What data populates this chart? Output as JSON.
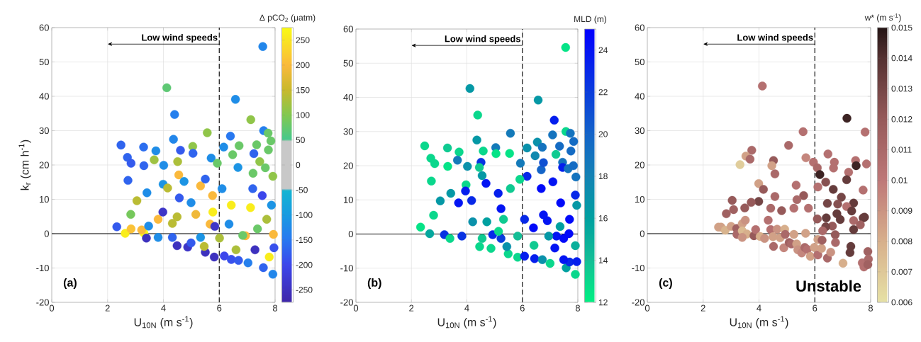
{
  "chart_data": [
    {
      "type": "scatter",
      "xlabel": "U$_{10N}$ (m s$^{-1}$)",
      "ylabel": "k$_{r}$ (cm h$^{-1}$)",
      "clabel": "Δ pCO$_{2}$ (μatm)",
      "xlim": [
        0,
        8
      ],
      "ylim": [
        -20,
        60
      ],
      "xticks": [
        0,
        2,
        4,
        6,
        8
      ],
      "yticks": [
        -20,
        -10,
        0,
        10,
        20,
        30,
        40,
        50,
        60
      ],
      "grid": true,
      "marker": "circle",
      "clim": [
        -275,
        275
      ],
      "cticks": [
        -250,
        -200,
        -150,
        -100,
        -50,
        0,
        50,
        100,
        150,
        200,
        250
      ],
      "ref_lines": [
        {
          "axis": "y",
          "value": 0
        },
        {
          "axis": "x",
          "value": 6,
          "line_style": "dashed"
        }
      ],
      "annotations": [
        "Low wind speeds",
        "(a)"
      ],
      "x": [
        7.56,
        4.12,
        6.58,
        4.4,
        7.13,
        5.57,
        4.36,
        2.48,
        6.4,
        7.59,
        7.75,
        7.85,
        3.29,
        3.73,
        4.61,
        5.05,
        5.06,
        2.71,
        2.84,
        3.67,
        4.01,
        4.51,
        3.3,
        5.71,
        6.16,
        6.71,
        7.24,
        7.34,
        7.76,
        6.48,
        7.45,
        7.65,
        7.92,
        2.73,
        4.55,
        5.93,
        6.67,
        7.21,
        3.41,
        5.33,
        3.99,
        3.05,
        2.83,
        2.33,
        2.63,
        2.84,
        3.3,
        3.39,
        3.22,
        3.81,
        4.15,
        4.32,
        4.49,
        4.87,
        5.5,
        5.82,
        6.18,
        6.43,
        6.69,
        7.03,
        7.58,
        7.92,
        7.79,
        7.96,
        7.94,
        6.94,
        6.43,
        5.77,
        7.12,
        6.84,
        6.6,
        5.46,
        6.01,
        4.99,
        6.1,
        7.2,
        7.54,
        7.87,
        7.7,
        7.37,
        4.99,
        4.57,
        3.98,
        4.49,
        5.16,
        5.67,
        3.47,
        3.81,
        4.32,
        5.33,
        5.84,
        6.35,
        5.76,
        5.5,
        4.74,
        7.28
      ],
      "values": [
        54.5,
        42.5,
        39.1,
        34.7,
        33.2,
        29.4,
        27.5,
        25.8,
        28.4,
        30.0,
        29.3,
        27.0,
        25.2,
        24.1,
        24.3,
        25.4,
        23.4,
        22.2,
        20.5,
        21.5,
        19.9,
        21.0,
        19.8,
        22.0,
        25.2,
        25.6,
        23.3,
        25.9,
        24.4,
        23.0,
        21.0,
        19.2,
        16.7,
        15.5,
        17.1,
        20.5,
        19.3,
        17.6,
        11.9,
        13.9,
        14.4,
        9.6,
        5.6,
        2.0,
        0.1,
        1.4,
        0.2,
        -1.3,
        1.1,
        4.2,
        13.3,
        3.0,
        -3.5,
        -3.9,
        -5.4,
        -6.8,
        -6.5,
        -7.5,
        -7.8,
        -8.5,
        -9.9,
        -11.8,
        -6.8,
        -4.1,
        -0.2,
        -0.6,
        8.3,
        6.3,
        7.6,
        -0.5,
        -4.7,
        -3.7,
        -1.3,
        -2.7,
        13.1,
        13.1,
        11.1,
        8.3,
        4.2,
        1.4,
        9.0,
        10.4,
        6.3,
        4.9,
        5.6,
        2.8,
        2.2,
        -1.1,
        -1.1,
        -1.1,
        2.1,
        2.8,
        11.1,
        15.9,
        15.2,
        -4.7
      ],
      "cvalues": [
        -130,
        70,
        -120,
        -140,
        110,
        110,
        -130,
        -170,
        -150,
        -140,
        80,
        80,
        -160,
        -120,
        -180,
        110,
        -170,
        -170,
        -180,
        120,
        -120,
        130,
        -170,
        -120,
        -120,
        80,
        -170,
        80,
        80,
        80,
        110,
        80,
        110,
        -170,
        200,
        80,
        -110,
        80,
        -120,
        200,
        -110,
        140,
        90,
        -180,
        260,
        210,
        270,
        -250,
        200,
        200,
        140,
        140,
        -250,
        -240,
        -250,
        -250,
        -200,
        -190,
        -180,
        -140,
        -170,
        -130,
        260,
        -190,
        200,
        200,
        260,
        260,
        260,
        80,
        130,
        140,
        130,
        -180,
        -120,
        -170,
        -200,
        -110,
        130,
        80,
        -120,
        -180,
        -240,
        140,
        190,
        200,
        -120,
        -120,
        -170,
        -110,
        -240,
        -120,
        200,
        -170,
        -110,
        -250
      ]
    },
    {
      "type": "scatter",
      "xlabel": "U$_{10N}$ (m s$^{-1}$)",
      "clabel": "MLD (m)",
      "xlim": [
        0,
        8
      ],
      "ylim": [
        -20,
        60
      ],
      "xticks": [
        0,
        2,
        4,
        6,
        8
      ],
      "yticks": [
        -20,
        -10,
        0,
        10,
        20,
        30,
        40,
        50,
        60
      ],
      "grid": true,
      "marker": "circle",
      "clim": [
        12,
        25
      ],
      "cticks": [
        12,
        14,
        16,
        18,
        20,
        22,
        24
      ],
      "ref_lines": [
        {
          "axis": "y",
          "value": 0
        },
        {
          "axis": "x",
          "value": 6,
          "line_style": "dashed"
        }
      ],
      "annotations": [
        "Low wind speeds",
        "(b)"
      ],
      "x": [
        7.56,
        4.11,
        6.57,
        4.39,
        7.15,
        5.57,
        4.36,
        2.48,
        7.57,
        7.73,
        7.09,
        7.85,
        3.3,
        3.72,
        4.59,
        5.04,
        5.05,
        5.54,
        2.7,
        2.84,
        3.66,
        4.51,
        3.31,
        4.02,
        4.45,
        6.17,
        6.54,
        6.72,
        7.34,
        7.21,
        6.46,
        7.75,
        7.45,
        7.45,
        7.65,
        7.84,
        7.93,
        6.17,
        6.68,
        6.76,
        5.93,
        2.72,
        4.55,
        4.69,
        5.13,
        3.42,
        3.97,
        3.04,
        2.8,
        2.33,
        2.66,
        3.19,
        3.39,
        3.82,
        4.17,
        3.95,
        3.7,
        4.46,
        4.87,
        5.49,
        5.83,
        6.08,
        6.44,
        6.72,
        7.0,
        7.58,
        7.91,
        7.7,
        7.96,
        7.49,
        7.17,
        7.23,
        7.49,
        7.68,
        7.91,
        6.95,
        6.4,
        6.08,
        6.9,
        7.7,
        7.38,
        6.76,
        6.68,
        7.1,
        7.91,
        7.96,
        4.93,
        5.23,
        5.44,
        5.83,
        5.23,
        5.91,
        5.57,
        4.72,
        4.21,
        5.32,
        4.55,
        6.42,
        7.36,
        5.14
      ],
      "values": [
        54.6,
        42.6,
        39.2,
        34.8,
        33.3,
        29.5,
        27.5,
        25.8,
        30.0,
        29.5,
        29.0,
        27.1,
        25.2,
        24.0,
        24.3,
        25.3,
        23.5,
        23.6,
        22.2,
        20.6,
        21.6,
        21.0,
        19.8,
        19.8,
        19.5,
        25.2,
        26.9,
        25.4,
        25.7,
        23.3,
        22.9,
        24.3,
        21.0,
        19.5,
        19.1,
        20.0,
        16.7,
        16.9,
        18.8,
        20.9,
        20.7,
        15.5,
        17.1,
        14.8,
        11.9,
        11.9,
        14.4,
        9.7,
        5.5,
        2.0,
        0.1,
        -0.2,
        -1.3,
        -0.6,
        9.8,
        12.6,
        9.1,
        -3.7,
        -4.2,
        -5.8,
        -6.8,
        -6.5,
        -7.2,
        -7.5,
        -8.6,
        -9.9,
        -11.8,
        -8.2,
        -8.1,
        -7.5,
        -4.1,
        -0.6,
        -1.3,
        0.1,
        -3.4,
        -0.6,
        1.8,
        4.3,
        3.9,
        4.3,
        9.1,
        5.6,
        13.3,
        15.3,
        11.4,
        8.4,
        -0.2,
        -1.3,
        -3.7,
        -0.6,
        7.4,
        16.0,
        13.3,
        3.6,
        3.6,
        4.3,
        -1.3,
        -3.3,
        2.2,
        0.8
      ],
      "cvalues": [
        12.5,
        16.5,
        16.5,
        13,
        23.5,
        18.5,
        16.5,
        13,
        13,
        19,
        19,
        19.5,
        13.5,
        13,
        13,
        18.5,
        12.5,
        12.5,
        13,
        13,
        18.5,
        22.5,
        12.5,
        17,
        13.5,
        17,
        17,
        19,
        19.5,
        13.5,
        17.5,
        19.5,
        19,
        23.5,
        19,
        19.5,
        19,
        23,
        20,
        21,
        18.5,
        13,
        16.5,
        24,
        23.5,
        16.5,
        13,
        16.5,
        13,
        12.5,
        15.5,
        22.5,
        13,
        22.5,
        23,
        23.5,
        24,
        13,
        13,
        13,
        13,
        23.5,
        23.5,
        17,
        13,
        16,
        13,
        23,
        23.5,
        24,
        24,
        24,
        24.5,
        24.5,
        15,
        16.5,
        24.5,
        23,
        24,
        24.5,
        24.5,
        24,
        24.5,
        24,
        23,
        16.5,
        23,
        22,
        17,
        14,
        24,
        13,
        13.5,
        16,
        17,
        13.5,
        13.5,
        13.5,
        16,
        13
      ]
    },
    {
      "type": "scatter",
      "xlabel": "U$_{10N}$ (m s$^{-1}$)",
      "clabel": "w* (m s$^{-1}$)",
      "xlim": [
        0,
        8
      ],
      "ylim": [
        -20,
        60
      ],
      "xticks": [
        0,
        2,
        4,
        6,
        8
      ],
      "yticks": [
        -20,
        -10,
        0,
        10,
        20,
        30,
        40,
        50,
        60
      ],
      "grid": true,
      "marker": "circle",
      "clim": [
        0.006,
        0.015
      ],
      "cticks": [
        0.006,
        0.007,
        0.008,
        0.009,
        0.01,
        0.011,
        0.012,
        0.013,
        0.014,
        0.015
      ],
      "ref_lines": [
        {
          "axis": "y",
          "value": 0
        },
        {
          "axis": "x",
          "value": 6,
          "line_style": "dashed"
        }
      ],
      "annotations": [
        "Low wind speeds",
        "(c)",
        "Unstable"
      ],
      "x": [
        4.12,
        7.15,
        5.58,
        7.8,
        5.06,
        3.74,
        3.53,
        3.68,
        3.32,
        4.52,
        4.46,
        5.68,
        6.47,
        6.7,
        7.46,
        7.48,
        7.85,
        5.95,
        6.09,
        6.18,
        6.67,
        7.21,
        4.57,
        7.14,
        3.99,
        4.16,
        6.39,
        6.66,
        7.73,
        5.33,
        5.6,
        6.11,
        3.04,
        3.99,
        3.72,
        4.57,
        5.36,
        6.95,
        6.45,
        6.82,
        7.39,
        7.14,
        3.09,
        3.49,
        2.83,
        4.42,
        4.81,
        5.25,
        5.77,
        6.79,
        6.91,
        7.32,
        7.73,
        7.39,
        7.78,
        7.63,
        6.09,
        6.41,
        6.63,
        6.39,
        6.28,
        7.39,
        6.73,
        2.55,
        2.64,
        2.79,
        3.0,
        3.2,
        3.21,
        3.4,
        3.51,
        3.4,
        3.57,
        3.4,
        3.82,
        3.88,
        4.04,
        4.2,
        4.33,
        4.42,
        4.5,
        4.52,
        4.65,
        4.76,
        4.89,
        4.92,
        4.94,
        5.08,
        5.16,
        5.25,
        5.35,
        5.39,
        5.53,
        5.64,
        5.67,
        5.73,
        5.84,
        5.98,
        6.11,
        6.11,
        6.24,
        6.26,
        6.45,
        6.57,
        6.74,
        7.01,
        7.29,
        7.26,
        7.9,
        7.7,
        7.76,
        7.92,
        7.9
      ],
      "values": [
        43.0,
        33.6,
        29.7,
        29.6,
        25.7,
        24.3,
        22.6,
        21.7,
        20.1,
        21.3,
        19.8,
        22.1,
        23.2,
        20.8,
        21.3,
        19.8,
        20.3,
        20.8,
        19.2,
        17.2,
        19.1,
        17.9,
        17.4,
        15.7,
        14.6,
        12.9,
        15.0,
        12.9,
        12.7,
        14.1,
        11.1,
        13.6,
        9.7,
        9.4,
        9.1,
        10.8,
        9.9,
        10.6,
        8.8,
        8.6,
        8.9,
        7.9,
        7.0,
        7.5,
        5.8,
        7.4,
        6.7,
        7.4,
        7.4,
        5.8,
        4.1,
        6.6,
        4.6,
        3.8,
        4.8,
        2.6,
        4.3,
        4.6,
        2.2,
        2.0,
        0.8,
        1.2,
        -0.3,
        1.9,
        1.9,
        1.0,
        2.1,
        1.5,
        -0.2,
        2.9,
        3.9,
        0.8,
        -0.1,
        -1.1,
        -0.6,
        1.2,
        -0.8,
        -1.4,
        3.9,
        1.2,
        -0.9,
        -3.7,
        1.3,
        -1.2,
        -4.1,
        1.3,
        -0.2,
        -2.6,
        -3.0,
        -0.2,
        -3.0,
        -4.7,
        -5.6,
        -4.0,
        0.1,
        -4.6,
        -6.6,
        -4.0,
        -1.7,
        -6.2,
        -4.3,
        -1.9,
        -7.1,
        -5.4,
        -2.6,
        -8.6,
        -3.7,
        -5.5,
        -5.2,
        -8.5,
        -9.7,
        -7.4,
        -9.0
      ],
      "cvalues": [
        0.0105,
        0.0145,
        0.0105,
        0.0105,
        0.011,
        0.011,
        0.0085,
        0.011,
        0.0068,
        0.012,
        0.0085,
        0.0095,
        0.0105,
        0.0105,
        0.0105,
        0.0145,
        0.0105,
        0.0105,
        0.011,
        0.0145,
        0.0105,
        0.0105,
        0.011,
        0.0135,
        0.0085,
        0.012,
        0.0125,
        0.0135,
        0.0105,
        0.0105,
        0.012,
        0.0105,
        0.012,
        0.013,
        0.012,
        0.011,
        0.011,
        0.013,
        0.013,
        0.0125,
        0.0135,
        0.0105,
        0.0115,
        0.012,
        0.0115,
        0.011,
        0.012,
        0.0105,
        0.0105,
        0.0135,
        0.0135,
        0.0135,
        0.0135,
        0.011,
        0.0135,
        0.0115,
        0.012,
        0.0135,
        0.012,
        0.013,
        0.011,
        0.0135,
        0.012,
        0.0085,
        0.0085,
        0.0078,
        0.0085,
        0.0115,
        0.011,
        0.0085,
        0.009,
        0.0075,
        0.008,
        0.009,
        0.012,
        0.0105,
        0.008,
        0.009,
        0.0105,
        0.0105,
        0.0085,
        0.011,
        0.009,
        0.0085,
        0.0095,
        0.008,
        0.011,
        0.0115,
        0.011,
        0.0085,
        0.0085,
        0.009,
        0.0095,
        0.011,
        0.0085,
        0.0105,
        0.0085,
        0.0085,
        0.0085,
        0.0105,
        0.0085,
        0.0115,
        0.011,
        0.009,
        0.011,
        0.008,
        0.0135,
        0.0135,
        0.0115,
        0.0105,
        0.0105,
        0.011,
        0.0115
      ]
    }
  ]
}
